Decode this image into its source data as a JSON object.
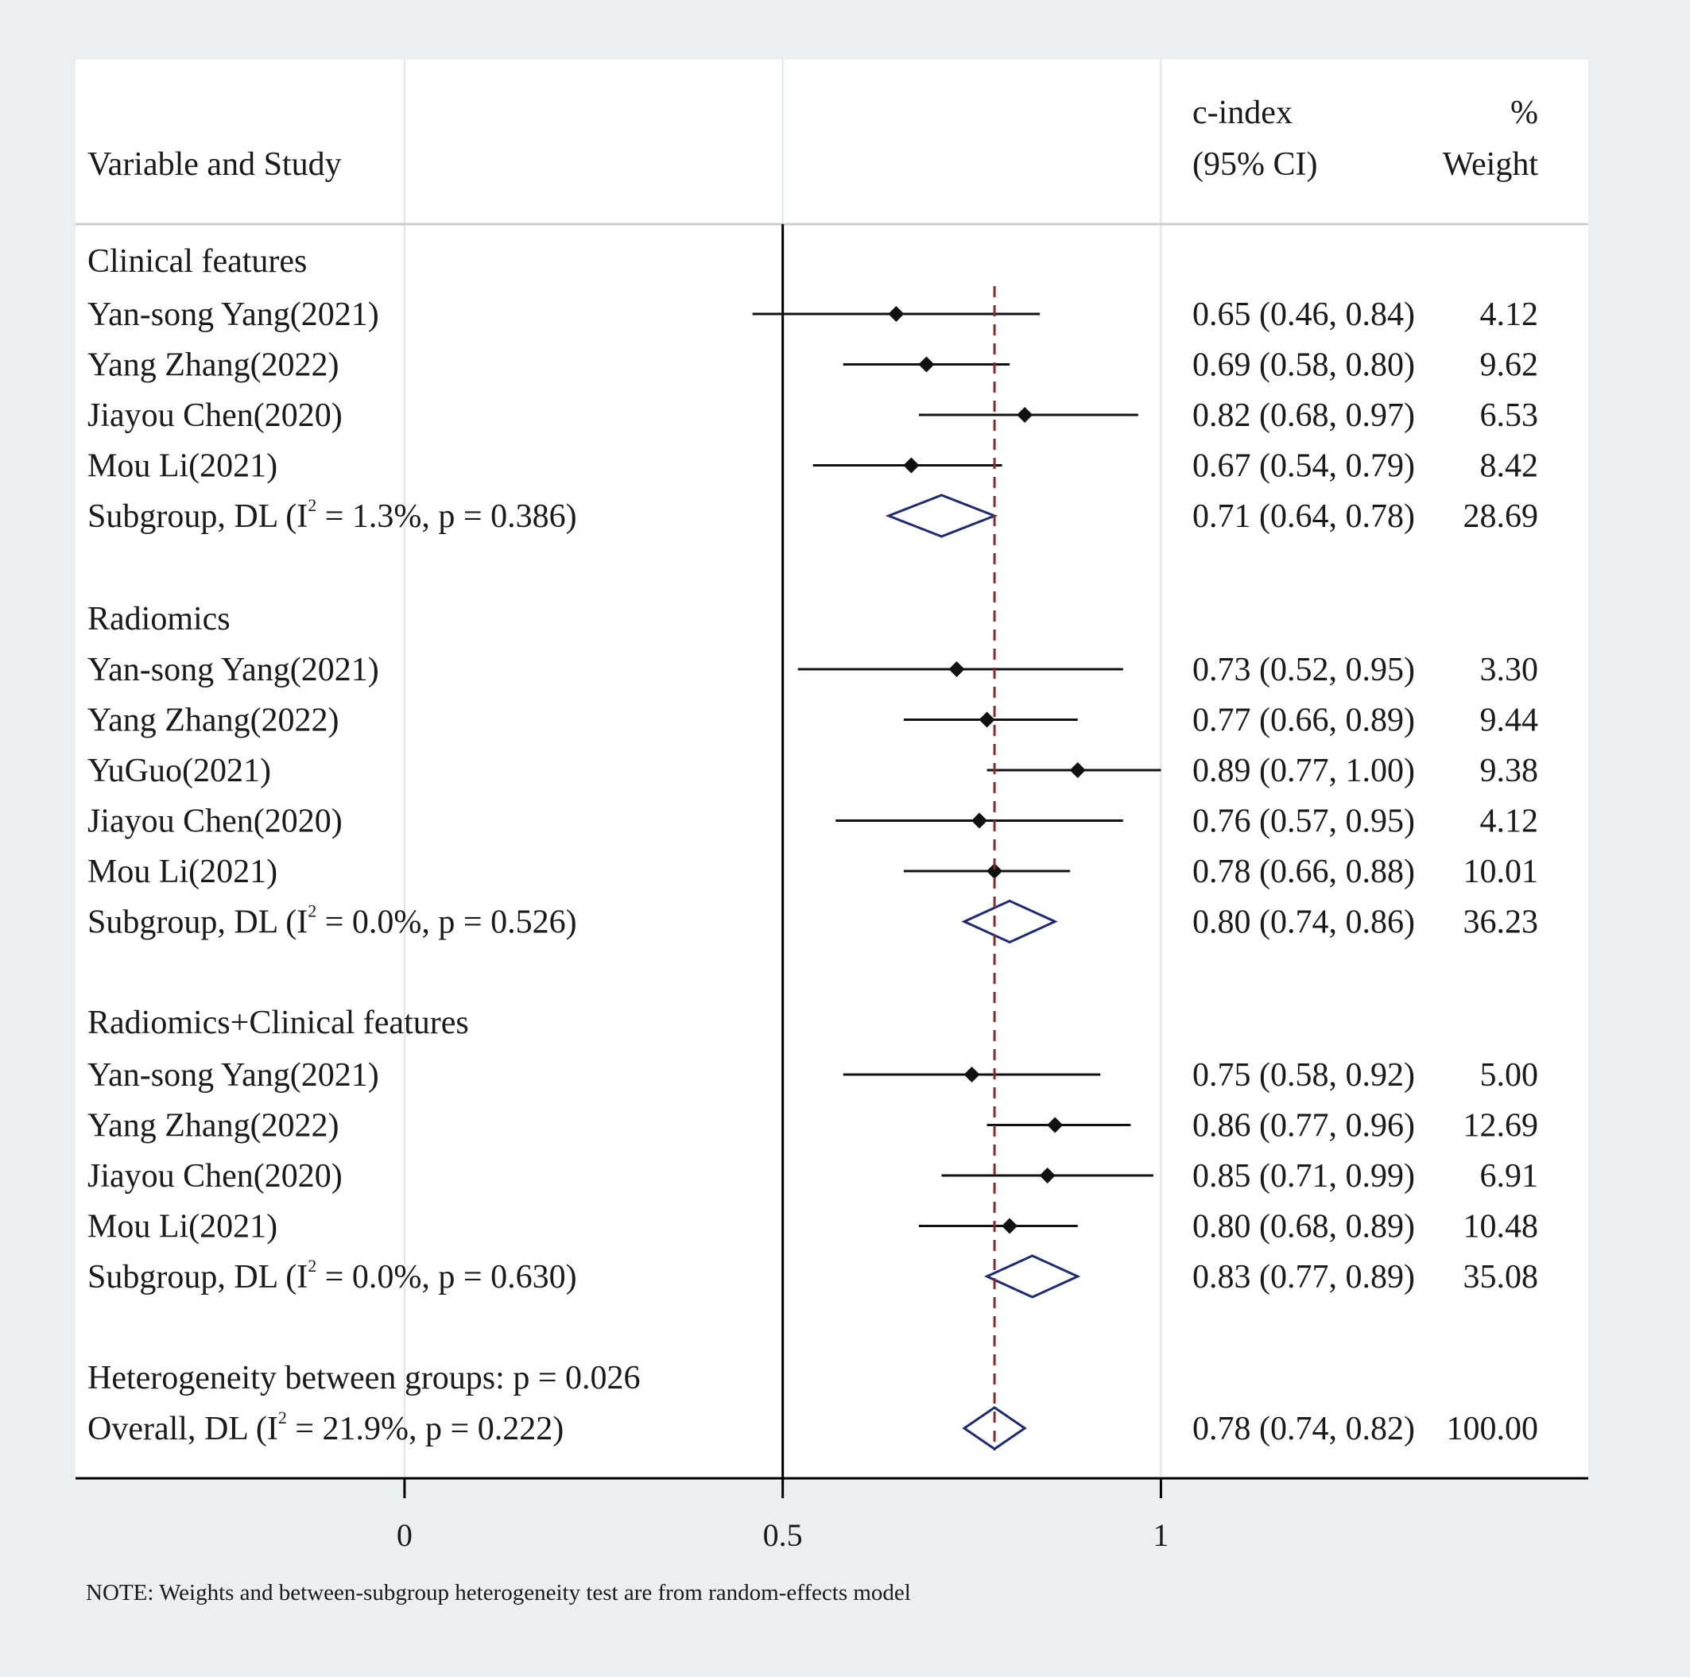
{
  "chart_data": {
    "type": "forest",
    "header": {
      "variable": "Variable and Study",
      "effect_line1": "c-index",
      "effect_line2": "(95% CI)",
      "weight_line1": "%",
      "weight_line2": "Weight"
    },
    "x_ticks": [
      {
        "value": 0,
        "label": "0"
      },
      {
        "value": 0.5,
        "label": "0.5"
      },
      {
        "value": 1,
        "label": "1"
      }
    ],
    "xlim": [
      -0.435,
      1.565
    ],
    "overall_line_value": 0.78,
    "groups": [
      {
        "name": "Clinical features",
        "studies": [
          {
            "name": "Yan-song Yang(2021)",
            "est": 0.65,
            "lo": 0.46,
            "hi": 0.84,
            "ci_text": "0.65 (0.46, 0.84)",
            "weight": "4.12"
          },
          {
            "name": "Yang Zhang(2022)",
            "est": 0.69,
            "lo": 0.58,
            "hi": 0.8,
            "ci_text": "0.69 (0.58, 0.80)",
            "weight": "9.62"
          },
          {
            "name": "Jiayou Chen(2020)",
            "est": 0.82,
            "lo": 0.68,
            "hi": 0.97,
            "ci_text": "0.82 (0.68, 0.97)",
            "weight": "6.53"
          },
          {
            "name": "Mou Li(2021)",
            "est": 0.67,
            "lo": 0.54,
            "hi": 0.79,
            "ci_text": "0.67 (0.54, 0.79)",
            "weight": "8.42"
          }
        ],
        "subgroup": {
          "label_pre": "Subgroup, DL (I",
          "sup": "2",
          "label_post": " = 1.3%, p = 0.386)",
          "est": 0.71,
          "lo": 0.64,
          "hi": 0.78,
          "ci_text": "0.71 (0.64, 0.78)",
          "weight": "28.69"
        }
      },
      {
        "name": "Radiomics",
        "studies": [
          {
            "name": "Yan-song Yang(2021)",
            "est": 0.73,
            "lo": 0.52,
            "hi": 0.95,
            "ci_text": "0.73 (0.52, 0.95)",
            "weight": "3.30"
          },
          {
            "name": "Yang Zhang(2022)",
            "est": 0.77,
            "lo": 0.66,
            "hi": 0.89,
            "ci_text": "0.77 (0.66, 0.89)",
            "weight": "9.44"
          },
          {
            "name": "YuGuo(2021)",
            "est": 0.89,
            "lo": 0.77,
            "hi": 1.0,
            "ci_text": "0.89 (0.77, 1.00)",
            "weight": "9.38"
          },
          {
            "name": "Jiayou Chen(2020)",
            "est": 0.76,
            "lo": 0.57,
            "hi": 0.95,
            "ci_text": "0.76 (0.57, 0.95)",
            "weight": "4.12"
          },
          {
            "name": "Mou Li(2021)",
            "est": 0.78,
            "lo": 0.66,
            "hi": 0.88,
            "ci_text": "0.78 (0.66, 0.88)",
            "weight": "10.01"
          }
        ],
        "subgroup": {
          "label_pre": "Subgroup, DL (I",
          "sup": "2",
          "label_post": " = 0.0%, p = 0.526)",
          "est": 0.8,
          "lo": 0.74,
          "hi": 0.86,
          "ci_text": "0.80 (0.74, 0.86)",
          "weight": "36.23"
        }
      },
      {
        "name": "Radiomics+Clinical features",
        "studies": [
          {
            "name": "Yan-song Yang(2021)",
            "est": 0.75,
            "lo": 0.58,
            "hi": 0.92,
            "ci_text": "0.75 (0.58, 0.92)",
            "weight": "5.00"
          },
          {
            "name": "Yang Zhang(2022)",
            "est": 0.86,
            "lo": 0.77,
            "hi": 0.96,
            "ci_text": "0.86 (0.77, 0.96)",
            "weight": "12.69"
          },
          {
            "name": "Jiayou Chen(2020)",
            "est": 0.85,
            "lo": 0.71,
            "hi": 0.99,
            "ci_text": "0.85 (0.71, 0.99)",
            "weight": "6.91"
          },
          {
            "name": "Mou Li(2021)",
            "est": 0.8,
            "lo": 0.68,
            "hi": 0.89,
            "ci_text": "0.80 (0.68, 0.89)",
            "weight": "10.48"
          }
        ],
        "subgroup": {
          "label_pre": "Subgroup, DL (I",
          "sup": "2",
          "label_post": " = 0.0%, p = 0.630)",
          "est": 0.83,
          "lo": 0.77,
          "hi": 0.89,
          "ci_text": "0.83 (0.77, 0.89)",
          "weight": "35.08"
        }
      }
    ],
    "heterogeneity_text": "Heterogeneity between groups: p = 0.026",
    "overall": {
      "label_pre": "Overall, DL (I",
      "sup": "2",
      "label_post": " = 21.9%, p = 0.222)",
      "est": 0.78,
      "lo": 0.74,
      "hi": 0.82,
      "ci_text": "0.78 (0.74, 0.82)",
      "weight": "100.00"
    },
    "note": "NOTE: Weights and between-subgroup heterogeneity test are from random-effects model"
  },
  "colors": {
    "background": "#e9eff2",
    "panel": "#ffffff",
    "grid": "#dde6ea",
    "marker": "#111111",
    "diamond": "#1f2a6b",
    "overall_line": "#8b2a2a"
  }
}
